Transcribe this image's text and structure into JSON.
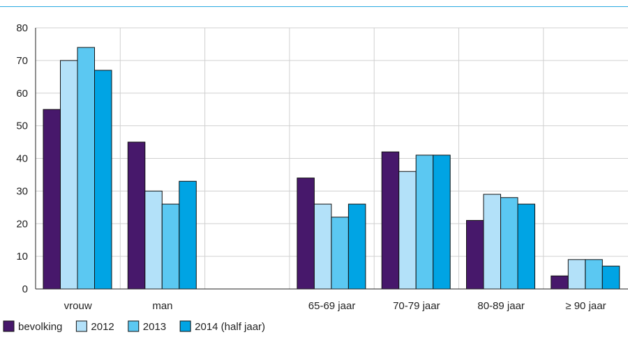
{
  "chart_data": {
    "type": "bar",
    "categories": [
      "vrouw",
      "man",
      "",
      "65-69 jaar",
      "70-79 jaar",
      "80-89 jaar",
      "≥ 90 jaar"
    ],
    "series": [
      {
        "name": "bevolking",
        "color": "#47186b",
        "values": [
          55,
          45,
          null,
          34,
          42,
          21,
          4
        ]
      },
      {
        "name": "2012",
        "color": "#b3e1f9",
        "values": [
          70,
          30,
          null,
          26,
          36,
          29,
          9
        ]
      },
      {
        "name": "2013",
        "color": "#5bc8f2",
        "values": [
          74,
          26,
          null,
          22,
          41,
          28,
          9
        ]
      },
      {
        "name": "2014 (half jaar)",
        "color": "#00a4e4",
        "values": [
          67,
          33,
          null,
          26,
          41,
          26,
          7
        ]
      }
    ],
    "ylim": [
      0,
      80
    ],
    "yticks": [
      0,
      10,
      20,
      30,
      40,
      50,
      60,
      70,
      80
    ],
    "grid": true,
    "legend_position": "bottom-left"
  }
}
